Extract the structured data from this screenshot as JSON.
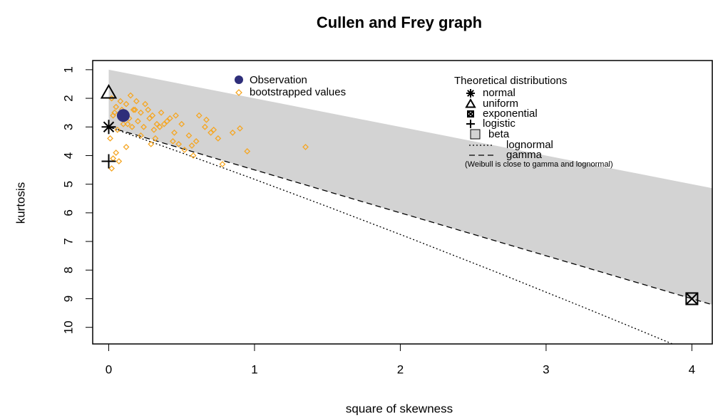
{
  "chart_data": {
    "type": "cullen-frey",
    "title": "Cullen and Frey graph",
    "xlabel": "square of skewness",
    "ylabel": "kurtosis",
    "xlim": [
      -0.11,
      4.14
    ],
    "ylim": [
      0.68,
      10.58
    ],
    "y_reversed": true,
    "xticks": [
      0,
      1,
      2,
      3,
      4
    ],
    "yticks": [
      1,
      2,
      3,
      4,
      5,
      6,
      7,
      8,
      9,
      10
    ],
    "observation": {
      "name": "Observation",
      "color": "#2e2e7a",
      "x": 0.1,
      "y": 2.6
    },
    "bootstrap": {
      "name": "bootstrapped values",
      "color": "#f5a623",
      "x": [
        0.02,
        0.05,
        0.08,
        0.03,
        0.12,
        0.15,
        0.18,
        0.22,
        0.25,
        0.28,
        0.01,
        0.06,
        0.1,
        0.14,
        0.2,
        0.24,
        0.3,
        0.33,
        0.36,
        0.4,
        0.04,
        0.09,
        0.16,
        0.19,
        0.27,
        0.31,
        0.35,
        0.42,
        0.45,
        0.5,
        0.55,
        0.6,
        0.48,
        0.52,
        0.58,
        0.62,
        0.66,
        0.7,
        0.75,
        0.44,
        0.38,
        0.32,
        0.12,
        0.07,
        0.02,
        0.05,
        0.22,
        0.29,
        0.13,
        0.17,
        0.78,
        0.85,
        0.9,
        0.95,
        0.67,
        0.72,
        0.57,
        1.35,
        0.03,
        0.46
      ],
      "y": [
        2.0,
        2.3,
        2.1,
        2.6,
        2.2,
        1.9,
        2.4,
        2.5,
        2.2,
        2.7,
        3.4,
        3.1,
        2.9,
        2.7,
        2.8,
        3.0,
        2.6,
        2.9,
        2.5,
        2.8,
        2.5,
        2.4,
        3.0,
        2.1,
        2.4,
        3.1,
        3.0,
        2.7,
        3.2,
        2.9,
        3.3,
        3.5,
        3.6,
        3.8,
        4.0,
        2.6,
        3.0,
        3.2,
        3.4,
        3.5,
        2.9,
        3.4,
        3.7,
        4.2,
        4.45,
        3.9,
        3.3,
        3.6,
        2.9,
        2.4,
        4.3,
        3.2,
        3.05,
        3.85,
        2.75,
        3.1,
        3.65,
        3.7,
        4.1,
        2.6
      ]
    },
    "theoretical_legend_title": "Theoretical distributions",
    "points": [
      {
        "name": "normal",
        "symbol": "asterisk",
        "x": 0,
        "y": 3
      },
      {
        "name": "uniform",
        "symbol": "triangle",
        "x": 0,
        "y": 1.8
      },
      {
        "name": "exponential",
        "symbol": "boxed-x",
        "x": 4,
        "y": 9
      },
      {
        "name": "logistic",
        "symbol": "plus",
        "x": 0,
        "y": 4.2
      }
    ],
    "beta": {
      "name": "beta",
      "color": "#d3d3d3",
      "x": [
        0,
        4.2
      ],
      "lower": [
        1,
        5.2
      ],
      "upper": [
        3,
        9.3
      ]
    },
    "lines": [
      {
        "name": "lognormal",
        "dash": "2,3",
        "x": [
          0,
          0.465,
          0.961,
          1.488,
          2.048,
          2.641,
          3.267,
          3.659,
          3.928
        ],
        "values": [
          3,
          3.838,
          4.756,
          5.758,
          6.85,
          8.035,
          9.32,
          10.141,
          10.71
        ]
      },
      {
        "name": "gamma",
        "dash": "8,5",
        "x": [
          0,
          4.2
        ],
        "values": [
          3,
          9.3
        ]
      }
    ],
    "note": "(Weibull is close to gamma and lognormal)"
  }
}
